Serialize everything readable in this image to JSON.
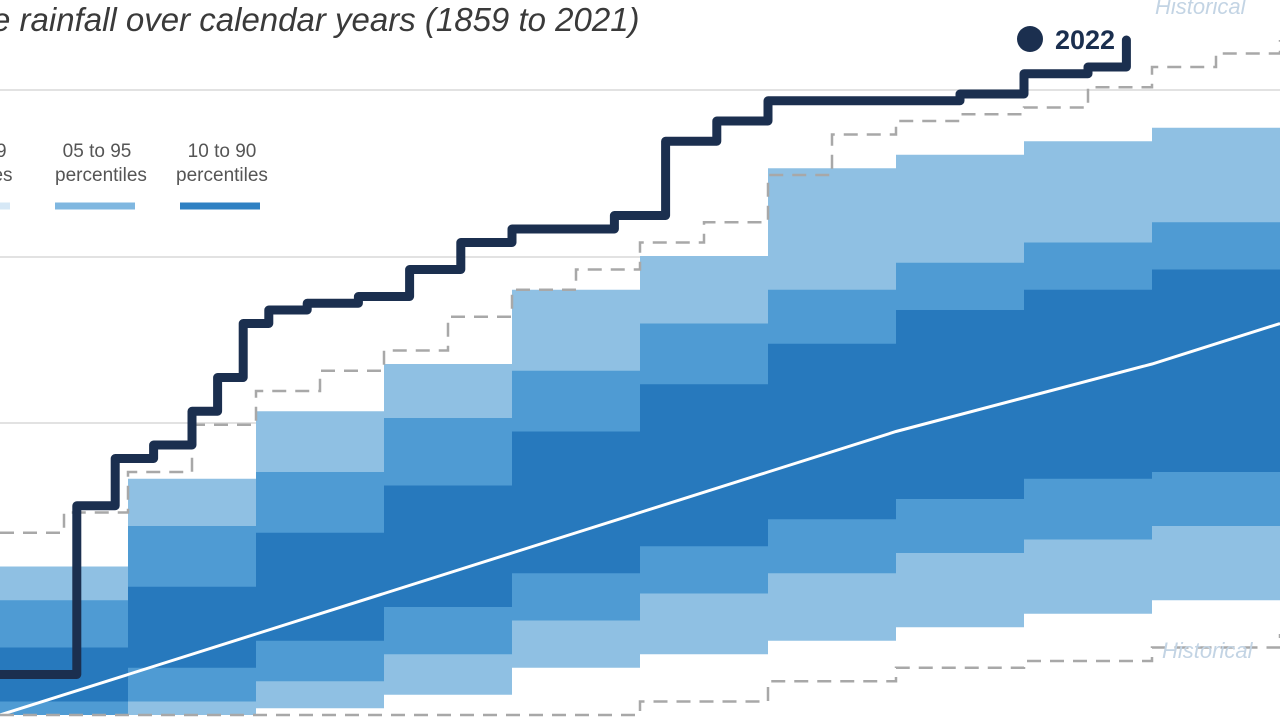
{
  "chart_data": {
    "type": "area",
    "title": "e rainfall over calendar years (1859 to 2021)",
    "legend": [
      {
        "label_line1": "9",
        "label_line2": "iles",
        "color": "#d6e8f6"
      },
      {
        "label_line1": "05 to 95",
        "label_line2": "percentiles",
        "color": "#7fb7e0"
      },
      {
        "label_line1": "10 to 90",
        "label_line2": "percentiles",
        "color": "#2f81c3"
      }
    ],
    "historical_labels": {
      "top": "Historical",
      "bottom": "Historical"
    },
    "current_year_label": "2022",
    "colors": {
      "band_outer": "#8fc0e3",
      "band_mid": "#4f9bd3",
      "band_inner": "#2779bd",
      "median": "#ffffff",
      "current": "#1b2f4f",
      "historical": "#a8a8a8",
      "grid": "#d8d8d8"
    },
    "x_range": [
      0,
      1
    ],
    "y_range": [
      0,
      1
    ],
    "note_units": "normalized fraction of plot; axis ticks not visible in crop",
    "bands": {
      "x": [
        0,
        0.1,
        0.2,
        0.3,
        0.4,
        0.5,
        0.6,
        0.7,
        0.8,
        0.9,
        1.0
      ],
      "p05_low": [
        0.0,
        0.0,
        0.01,
        0.03,
        0.07,
        0.09,
        0.11,
        0.13,
        0.15,
        0.17,
        0.19
      ],
      "p10_low": [
        0.0,
        0.02,
        0.05,
        0.09,
        0.14,
        0.18,
        0.21,
        0.24,
        0.26,
        0.28,
        0.3
      ],
      "p25_low": [
        0.02,
        0.07,
        0.11,
        0.16,
        0.21,
        0.25,
        0.29,
        0.32,
        0.35,
        0.36,
        0.38
      ],
      "p25_high": [
        0.1,
        0.19,
        0.27,
        0.34,
        0.42,
        0.49,
        0.55,
        0.6,
        0.63,
        0.66,
        0.69
      ],
      "p10_high": [
        0.17,
        0.28,
        0.36,
        0.44,
        0.51,
        0.58,
        0.63,
        0.67,
        0.7,
        0.73,
        0.75
      ],
      "p05_high": [
        0.22,
        0.35,
        0.45,
        0.52,
        0.63,
        0.68,
        0.81,
        0.83,
        0.85,
        0.87,
        0.92
      ],
      "median": [
        0.0,
        0.06,
        0.12,
        0.18,
        0.24,
        0.3,
        0.36,
        0.42,
        0.47,
        0.52,
        0.58
      ]
    },
    "historical_high": {
      "x": [
        0,
        0.05,
        0.1,
        0.15,
        0.2,
        0.25,
        0.3,
        0.35,
        0.4,
        0.45,
        0.5,
        0.55,
        0.6,
        0.65,
        0.7,
        0.75,
        0.8,
        0.85,
        0.9,
        0.95,
        1.0
      ],
      "y": [
        0.27,
        0.3,
        0.36,
        0.43,
        0.48,
        0.51,
        0.54,
        0.59,
        0.63,
        0.66,
        0.7,
        0.73,
        0.8,
        0.86,
        0.88,
        0.89,
        0.9,
        0.93,
        0.96,
        0.98,
        1.0
      ]
    },
    "historical_low": {
      "x": [
        0,
        0.1,
        0.2,
        0.3,
        0.4,
        0.5,
        0.6,
        0.7,
        0.8,
        0.9,
        1.0
      ],
      "y": [
        0.0,
        0.0,
        0.0,
        0.0,
        0.0,
        0.02,
        0.05,
        0.07,
        0.08,
        0.1,
        0.12
      ]
    },
    "current_year": {
      "x": [
        0.0,
        0.03,
        0.06,
        0.09,
        0.12,
        0.15,
        0.17,
        0.19,
        0.21,
        0.24,
        0.28,
        0.32,
        0.36,
        0.4,
        0.44,
        0.48,
        0.52,
        0.56,
        0.6,
        0.65,
        0.7,
        0.75,
        0.8,
        0.85,
        0.88
      ],
      "y": [
        0.06,
        0.06,
        0.31,
        0.38,
        0.4,
        0.45,
        0.5,
        0.58,
        0.6,
        0.61,
        0.62,
        0.66,
        0.7,
        0.72,
        0.72,
        0.74,
        0.85,
        0.88,
        0.91,
        0.91,
        0.91,
        0.92,
        0.95,
        0.96,
        1.0
      ]
    }
  }
}
